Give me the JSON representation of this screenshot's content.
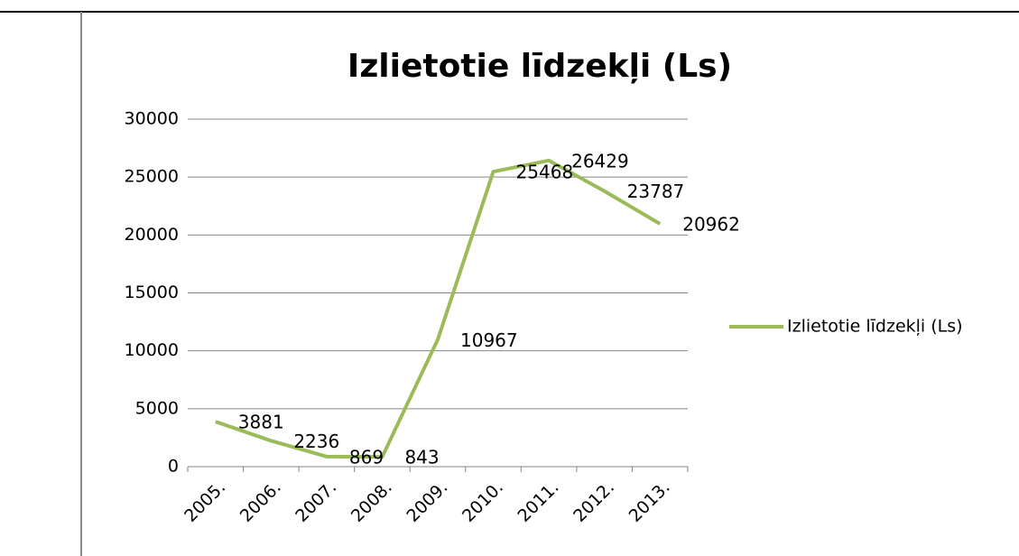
{
  "chart_data": {
    "type": "line",
    "title": "Izlietotie līdzekļi (Ls)",
    "categories": [
      "2005.",
      "2006.",
      "2007.",
      "2008.",
      "2009.",
      "2010.",
      "2011.",
      "2012.",
      "2013."
    ],
    "series": [
      {
        "name": "Izlietotie līdzekļi (Ls)",
        "color": "#9bbb59",
        "values": [
          3881,
          2236,
          869,
          843,
          10967,
          25468,
          26429,
          23787,
          20962
        ]
      }
    ],
    "ylim": [
      0,
      30000
    ],
    "yticks": [
      0,
      5000,
      10000,
      15000,
      20000,
      25000,
      30000
    ],
    "grid": true,
    "legend": "right"
  }
}
